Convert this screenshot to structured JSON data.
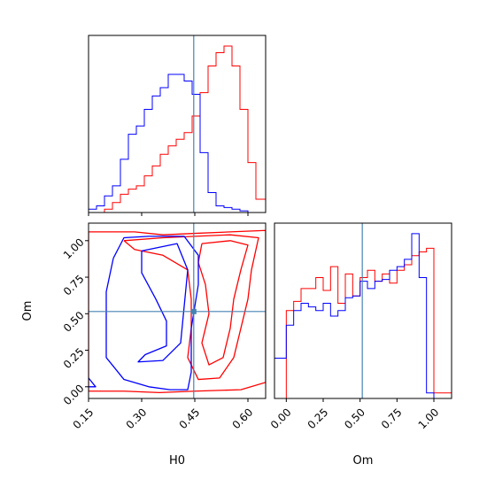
{
  "chart_data": {
    "type": "corner",
    "parameters": [
      "H0",
      "Om"
    ],
    "truth": {
      "H0": 0.447,
      "Om": 0.515
    },
    "series_colors": {
      "red": "#ff0000",
      "blue": "#0000ff",
      "truth": "#4682b4"
    },
    "panels": [
      {
        "id": "H0-histogram",
        "type": "histogram-step",
        "xlim": [
          0.15,
          0.65
        ],
        "xticks": [
          0.15,
          0.3,
          0.45,
          0.6
        ],
        "bin_edges": [
          0.15,
          0.1725,
          0.195,
          0.2175,
          0.24,
          0.2625,
          0.285,
          0.3075,
          0.33,
          0.3525,
          0.375,
          0.3975,
          0.42,
          0.4425,
          0.465,
          0.4875,
          0.51,
          0.5325,
          0.555,
          0.5775,
          0.6,
          0.6225,
          0.65
        ],
        "series": [
          {
            "color": "red",
            "values": [
              0,
              0,
              0.02,
              0.06,
              0.11,
              0.14,
              0.16,
              0.22,
              0.28,
              0.35,
              0.4,
              0.44,
              0.48,
              0.58,
              0.72,
              0.88,
              0.96,
              1.0,
              0.88,
              0.62,
              0.3,
              0.08
            ]
          },
          {
            "color": "blue",
            "values": [
              0.02,
              0.04,
              0.1,
              0.16,
              0.32,
              0.47,
              0.52,
              0.62,
              0.7,
              0.75,
              0.83,
              0.83,
              0.79,
              0.71,
              0.36,
              0.12,
              0.04,
              0.03,
              0.02,
              0.01,
              0,
              0
            ]
          }
        ]
      },
      {
        "id": "H0-Om-contour",
        "type": "contour",
        "xlim": [
          0.15,
          0.65
        ],
        "ylim": [
          -0.08,
          1.12
        ],
        "xticks": [
          0.15,
          0.3,
          0.45,
          0.6
        ],
        "yticks": [
          0.0,
          0.25,
          0.5,
          0.75,
          1.0
        ],
        "xlabel": "H0",
        "ylabel": "Om",
        "contours": [
          {
            "color": "red",
            "points": [
              [
                0.15,
                -0.03
              ],
              [
                0.15,
                1.06
              ],
              [
                0.28,
                1.06
              ],
              [
                0.36,
                1.04
              ],
              [
                0.45,
                1.05
              ],
              [
                0.55,
                1.06
              ],
              [
                0.65,
                1.07
              ],
              [
                0.65,
                0.03
              ],
              [
                0.58,
                -0.02
              ],
              [
                0.45,
                -0.03
              ],
              [
                0.35,
                -0.04
              ],
              [
                0.25,
                -0.03
              ],
              [
                0.15,
                -0.03
              ]
            ]
          },
          {
            "color": "red",
            "points": [
              [
                0.25,
                1.0
              ],
              [
                0.36,
                1.02
              ],
              [
                0.45,
                1.03
              ],
              [
                0.55,
                1.04
              ],
              [
                0.63,
                1.02
              ],
              [
                0.61,
                0.8
              ],
              [
                0.6,
                0.6
              ],
              [
                0.58,
                0.4
              ],
              [
                0.56,
                0.2
              ],
              [
                0.52,
                0.06
              ],
              [
                0.46,
                0.05
              ],
              [
                0.43,
                0.2
              ],
              [
                0.44,
                0.4
              ],
              [
                0.44,
                0.6
              ],
              [
                0.43,
                0.8
              ],
              [
                0.36,
                0.9
              ],
              [
                0.28,
                0.94
              ],
              [
                0.25,
                1.0
              ]
            ]
          },
          {
            "color": "red",
            "points": [
              [
                0.47,
                0.98
              ],
              [
                0.55,
                1.0
              ],
              [
                0.6,
                0.97
              ],
              [
                0.58,
                0.8
              ],
              [
                0.56,
                0.6
              ],
              [
                0.55,
                0.4
              ],
              [
                0.53,
                0.2
              ],
              [
                0.49,
                0.15
              ],
              [
                0.47,
                0.3
              ],
              [
                0.49,
                0.5
              ],
              [
                0.48,
                0.7
              ],
              [
                0.46,
                0.85
              ],
              [
                0.47,
                0.98
              ]
            ]
          },
          {
            "color": "blue",
            "points": [
              [
                0.15,
                0.06
              ],
              [
                0.17,
                0.0
              ],
              [
                0.15,
                0.0
              ]
            ]
          },
          {
            "color": "blue",
            "points": [
              [
                0.22,
                0.88
              ],
              [
                0.25,
                1.02
              ],
              [
                0.32,
                1.03
              ],
              [
                0.42,
                1.03
              ],
              [
                0.46,
                0.9
              ],
              [
                0.46,
                0.7
              ],
              [
                0.44,
                0.4
              ],
              [
                0.44,
                0.1
              ],
              [
                0.43,
                -0.02
              ],
              [
                0.38,
                -0.02
              ],
              [
                0.32,
                0.0
              ],
              [
                0.25,
                0.05
              ],
              [
                0.2,
                0.2
              ],
              [
                0.2,
                0.45
              ],
              [
                0.2,
                0.65
              ],
              [
                0.22,
                0.88
              ]
            ]
          },
          {
            "color": "blue",
            "points": [
              [
                0.3,
                0.93
              ],
              [
                0.4,
                0.98
              ],
              [
                0.43,
                0.8
              ],
              [
                0.42,
                0.55
              ],
              [
                0.41,
                0.3
              ],
              [
                0.36,
                0.18
              ],
              [
                0.29,
                0.17
              ],
              [
                0.31,
                0.22
              ],
              [
                0.37,
                0.28
              ],
              [
                0.37,
                0.45
              ],
              [
                0.34,
                0.6
              ],
              [
                0.3,
                0.78
              ],
              [
                0.3,
                0.93
              ]
            ]
          }
        ]
      },
      {
        "id": "Om-histogram",
        "type": "histogram-step",
        "xlim": [
          -0.08,
          1.12
        ],
        "xticks": [
          0.0,
          0.25,
          0.5,
          0.75,
          1.0
        ],
        "xlabel": "Om",
        "bin_edges": [
          -0.08,
          -0.05,
          0.0,
          0.05,
          0.1,
          0.15,
          0.2,
          0.25,
          0.3,
          0.35,
          0.4,
          0.45,
          0.5,
          0.55,
          0.6,
          0.65,
          0.7,
          0.75,
          0.8,
          0.85,
          0.9,
          0.95,
          1.0,
          1.12
        ],
        "series": [
          {
            "color": "red",
            "values": [
              0,
              0,
              0.48,
              0.53,
              0.6,
              0.6,
              0.66,
              0.59,
              0.72,
              0.52,
              0.68,
              0.56,
              0.66,
              0.7,
              0.64,
              0.68,
              0.63,
              0.7,
              0.73,
              0.78,
              0.8,
              0.82,
              0.03
            ]
          },
          {
            "color": "blue",
            "values": [
              0.22,
              0.22,
              0.4,
              0.48,
              0.52,
              0.5,
              0.48,
              0.52,
              0.45,
              0.48,
              0.55,
              0.56,
              0.64,
              0.6,
              0.64,
              0.65,
              0.7,
              0.72,
              0.76,
              0.9,
              0.66,
              0.03,
              0
            ]
          }
        ]
      }
    ]
  }
}
